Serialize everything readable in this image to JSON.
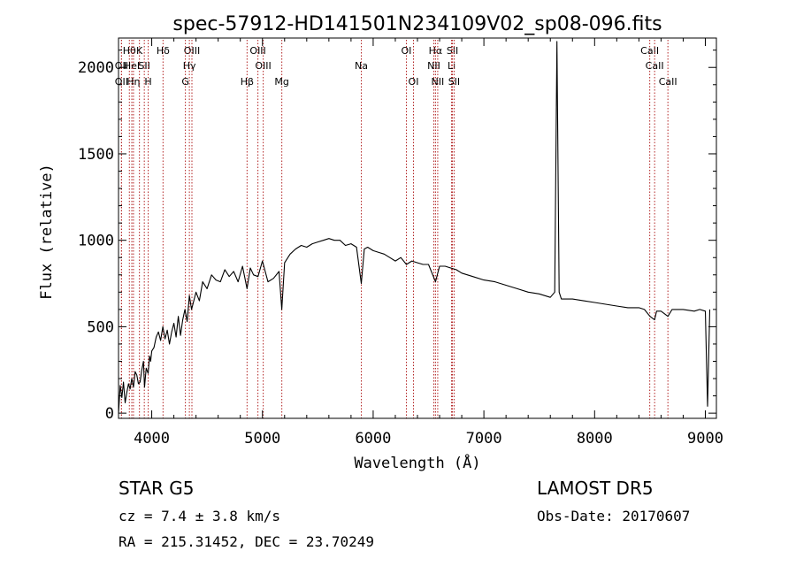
{
  "chart_data": {
    "type": "line",
    "title": "spec-57912-HD141501N234109V02_sp08-096.fits",
    "xlabel": "Wavelength (Å)",
    "ylabel": "Flux (relative)",
    "xlim": [
      3700,
      9100
    ],
    "ylim": [
      -30,
      2170
    ],
    "x_ticks": [
      4000,
      5000,
      6000,
      7000,
      8000,
      9000
    ],
    "y_ticks": [
      0,
      500,
      1000,
      1500,
      2000
    ],
    "grid": false,
    "line_color": "#000000",
    "marker_color": "#b22222",
    "series": [
      {
        "x": [
          3700,
          3715,
          3730,
          3745,
          3760,
          3775,
          3790,
          3805,
          3820,
          3835,
          3850,
          3865,
          3880,
          3895,
          3910,
          3925,
          3935,
          3950,
          3968,
          3980,
          3990,
          4000,
          4020,
          4040,
          4060,
          4080,
          4100,
          4120,
          4140,
          4160,
          4180,
          4200,
          4220,
          4240,
          4260,
          4280,
          4300,
          4320,
          4340,
          4360,
          4380,
          4400,
          4430,
          4460,
          4500,
          4540,
          4580,
          4620,
          4660,
          4700,
          4740,
          4780,
          4820,
          4861,
          4890,
          4920,
          4960,
          5000,
          5050,
          5100,
          5150,
          5175,
          5200,
          5250,
          5300,
          5350,
          5400,
          5450,
          5500,
          5550,
          5600,
          5650,
          5700,
          5750,
          5800,
          5850,
          5893,
          5920,
          5950,
          6000,
          6050,
          6100,
          6150,
          6200,
          6250,
          6300,
          6350,
          6400,
          6450,
          6500,
          6563,
          6600,
          6650,
          6700,
          6750,
          6800,
          6900,
          7000,
          7100,
          7200,
          7300,
          7400,
          7500,
          7600,
          7640,
          7660,
          7680,
          7700,
          7800,
          7900,
          8000,
          8100,
          8200,
          8300,
          8400,
          8450,
          8500,
          8542,
          8560,
          8600,
          8662,
          8700,
          8800,
          8900,
          8950,
          9000,
          9020,
          9040
        ],
        "y": [
          0,
          160,
          90,
          180,
          60,
          120,
          170,
          140,
          200,
          150,
          240,
          220,
          170,
          180,
          250,
          300,
          150,
          260,
          230,
          330,
          300,
          360,
          380,
          440,
          470,
          420,
          500,
          430,
          480,
          400,
          470,
          520,
          440,
          560,
          450,
          540,
          600,
          530,
          680,
          600,
          650,
          700,
          650,
          760,
          720,
          800,
          770,
          760,
          830,
          790,
          820,
          760,
          850,
          720,
          840,
          800,
          790,
          880,
          760,
          780,
          820,
          600,
          870,
          920,
          950,
          970,
          960,
          980,
          990,
          1000,
          1010,
          1000,
          1000,
          970,
          980,
          960,
          750,
          950,
          960,
          940,
          930,
          920,
          900,
          880,
          900,
          860,
          880,
          870,
          860,
          860,
          760,
          850,
          850,
          840,
          830,
          810,
          790,
          770,
          760,
          740,
          720,
          700,
          690,
          670,
          700,
          2150,
          700,
          660,
          660,
          650,
          640,
          630,
          620,
          610,
          610,
          600,
          560,
          540,
          590,
          590,
          560,
          600,
          600,
          590,
          600,
          590,
          40,
          600
        ]
      }
    ],
    "line_markers": [
      {
        "label": "Hθ",
        "x": 3798,
        "row": 0
      },
      {
        "label": "OII",
        "x": 3727,
        "row": 1
      },
      {
        "label": "OII",
        "x": 3727,
        "row": 2
      },
      {
        "label": "HeI",
        "x": 3820,
        "row": 1
      },
      {
        "label": "Hη",
        "x": 3835,
        "row": 2
      },
      {
        "label": "K",
        "x": 3889,
        "row": 0
      },
      {
        "label": "SII",
        "x": 3933,
        "row": 1
      },
      {
        "label": "H",
        "x": 3968,
        "row": 2
      },
      {
        "label": "Hδ",
        "x": 4102,
        "row": 0
      },
      {
        "label": "OIII",
        "x": 4363,
        "row": 0
      },
      {
        "label": "Hγ",
        "x": 4340,
        "row": 1
      },
      {
        "label": "G",
        "x": 4304,
        "row": 2
      },
      {
        "label": "OIII",
        "x": 4959,
        "row": 0
      },
      {
        "label": "OIII",
        "x": 5007,
        "row": 1
      },
      {
        "label": "Hβ",
        "x": 4861,
        "row": 2
      },
      {
        "label": "Mg",
        "x": 5175,
        "row": 2
      },
      {
        "label": "Na",
        "x": 5893,
        "row": 1
      },
      {
        "label": "OI",
        "x": 6300,
        "row": 0
      },
      {
        "label": "OI",
        "x": 6364,
        "row": 2
      },
      {
        "label": "Hα",
        "x": 6563,
        "row": 0
      },
      {
        "label": "NII",
        "x": 6548,
        "row": 1
      },
      {
        "label": "NII",
        "x": 6583,
        "row": 2
      },
      {
        "label": "SII",
        "x": 6716,
        "row": 0
      },
      {
        "label": "Li",
        "x": 6708,
        "row": 1
      },
      {
        "label": "SII",
        "x": 6731,
        "row": 2
      },
      {
        "label": "CaII",
        "x": 8498,
        "row": 0
      },
      {
        "label": "CaII",
        "x": 8542,
        "row": 1
      },
      {
        "label": "CaII",
        "x": 8662,
        "row": 2
      }
    ]
  },
  "info": {
    "class_label": "STAR    G5",
    "survey": "LAMOST DR5",
    "cz": "cz = 7.4 ± 3.8 km/s",
    "obs_date": "Obs-Date: 20170607",
    "coords": "RA = 215.31452, DEC =  23.70249"
  }
}
